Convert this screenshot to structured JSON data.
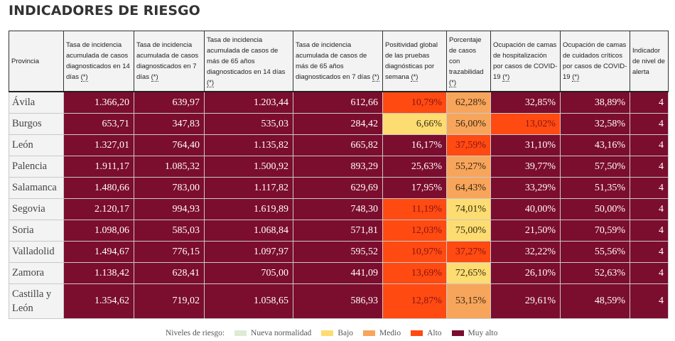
{
  "title": "INDICADORES DE RIESGO",
  "colors": {
    "muy-alto": "#7b0d2e",
    "alto": "#ff4a12",
    "medio": "#f8a55c",
    "bajo": "#fddc72",
    "nueva-normalidad": "#dcebd5"
  },
  "headers": [
    {
      "text": "Provincia",
      "ast": ""
    },
    {
      "text": "Tasa de incidencia acumulada de casos diagnosticados en 14 días ",
      "ast": "(*)"
    },
    {
      "text": "Tasa de incidencia acumulada de casos diagnosticados en 7 días ",
      "ast": "(*)"
    },
    {
      "text": "Tasa de incidencia acumulada de casos de más de 65 años diagnosticados en 14 días ",
      "ast": "(*)"
    },
    {
      "text": "Tasa de incidencia acumulada de casos de más de 65 años diagnosticados en 7 días ",
      "ast": "(*)"
    },
    {
      "text": "Positividad global de las pruebas diagnósticas por semana ",
      "ast": "(*)"
    },
    {
      "text": "Porcentaje de casos con trazabilidad ",
      "ast": "(*)"
    },
    {
      "text": "Ocupación de camas de hospitalización por casos de COVID-19 ",
      "ast": "(*)"
    },
    {
      "text": "Ocupación de camas de cuidados críticos por casos de COVID-19 ",
      "ast": "(*)"
    },
    {
      "text": "Indicador de nivel de alerta",
      "ast": ""
    }
  ],
  "rows": [
    {
      "prov": "Ávila",
      "cells": [
        "1.366,20",
        "639,97",
        "1.203,44",
        "612,66",
        "10,79%",
        "62,28%",
        "32,85%",
        "38,89%",
        "4"
      ],
      "levels": [
        "muyalto",
        "muyalto",
        "muyalto",
        "muyalto",
        "alto",
        "medio",
        "muyalto",
        "muyalto",
        "muyalto"
      ]
    },
    {
      "prov": "Burgos",
      "cells": [
        "653,71",
        "347,83",
        "535,03",
        "284,42",
        "6,66%",
        "56,00%",
        "13,02%",
        "32,58%",
        "4"
      ],
      "levels": [
        "muyalto",
        "muyalto",
        "muyalto",
        "muyalto",
        "bajo",
        "medio",
        "alto",
        "muyalto",
        "muyalto"
      ]
    },
    {
      "prov": "León",
      "cells": [
        "1.327,01",
        "764,40",
        "1.135,82",
        "665,82",
        "16,17%",
        "37,59%",
        "31,10%",
        "43,16%",
        "4"
      ],
      "levels": [
        "muyalto",
        "muyalto",
        "muyalto",
        "muyalto",
        "muyalto",
        "alto",
        "muyalto",
        "muyalto",
        "muyalto"
      ]
    },
    {
      "prov": "Palencia",
      "cells": [
        "1.911,17",
        "1.085,32",
        "1.500,92",
        "893,29",
        "25,63%",
        "55,27%",
        "39,77%",
        "57,50%",
        "4"
      ],
      "levels": [
        "muyalto",
        "muyalto",
        "muyalto",
        "muyalto",
        "muyalto",
        "medio",
        "muyalto",
        "muyalto",
        "muyalto"
      ]
    },
    {
      "prov": "Salamanca",
      "cells": [
        "1.480,66",
        "783,00",
        "1.117,82",
        "629,69",
        "17,95%",
        "64,43%",
        "33,29%",
        "51,35%",
        "4"
      ],
      "levels": [
        "muyalto",
        "muyalto",
        "muyalto",
        "muyalto",
        "muyalto",
        "medio",
        "muyalto",
        "muyalto",
        "muyalto"
      ]
    },
    {
      "prov": "Segovia",
      "cells": [
        "2.120,17",
        "994,93",
        "1.619,89",
        "748,30",
        "11,19%",
        "74,01%",
        "40,00%",
        "50,00%",
        "4"
      ],
      "levels": [
        "muyalto",
        "muyalto",
        "muyalto",
        "muyalto",
        "alto",
        "bajo",
        "muyalto",
        "muyalto",
        "muyalto"
      ]
    },
    {
      "prov": "Soria",
      "cells": [
        "1.098,06",
        "585,03",
        "1.068,84",
        "571,81",
        "12,03%",
        "75,00%",
        "21,50%",
        "70,59%",
        "4"
      ],
      "levels": [
        "muyalto",
        "muyalto",
        "muyalto",
        "muyalto",
        "alto",
        "bajo",
        "muyalto",
        "muyalto",
        "muyalto"
      ]
    },
    {
      "prov": "Valladolid",
      "cells": [
        "1.494,67",
        "776,15",
        "1.097,97",
        "595,52",
        "10,97%",
        "37,27%",
        "32,22%",
        "55,56%",
        "4"
      ],
      "levels": [
        "muyalto",
        "muyalto",
        "muyalto",
        "muyalto",
        "alto",
        "alto",
        "muyalto",
        "muyalto",
        "muyalto"
      ]
    },
    {
      "prov": "Zamora",
      "cells": [
        "1.138,42",
        "628,41",
        "705,00",
        "441,09",
        "13,69%",
        "72,65%",
        "26,10%",
        "52,63%",
        "4"
      ],
      "levels": [
        "muyalto",
        "muyalto",
        "muyalto",
        "muyalto",
        "alto",
        "bajo",
        "muyalto",
        "muyalto",
        "muyalto"
      ]
    },
    {
      "prov": "Castilla y León",
      "cells": [
        "1.354,62",
        "719,02",
        "1.058,65",
        "586,93",
        "12,87%",
        "53,15%",
        "29,61%",
        "48,59%",
        "4"
      ],
      "levels": [
        "muyalto",
        "muyalto",
        "muyalto",
        "muyalto",
        "alto",
        "medio",
        "muyalto",
        "muyalto",
        "muyalto"
      ]
    }
  ],
  "legend": {
    "label": "Niveles de riesgo:",
    "items": [
      {
        "label": "Nueva normalidad",
        "color": "#dcebd5"
      },
      {
        "label": "Bajo",
        "color": "#fddc72"
      },
      {
        "label": "Medio",
        "color": "#f8a55c"
      },
      {
        "label": "Alto",
        "color": "#ff4a12"
      },
      {
        "label": "Muy alto",
        "color": "#7b0d2e"
      }
    ]
  }
}
